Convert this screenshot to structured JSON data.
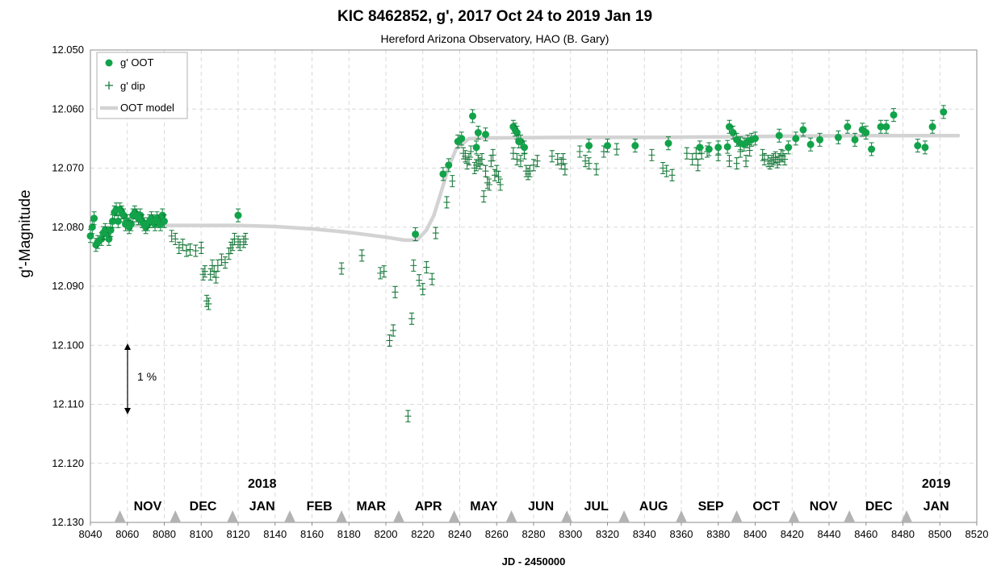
{
  "chart_data": {
    "type": "scatter",
    "title": "KIC 8462852, g', 2017 Oct 24 to 2019 Jan 19",
    "subtitle": "Hereford Arizona Observatory, HAO (B. Gary)",
    "xlabel": "JD - 2450000",
    "ylabel": "g'-Magnitude",
    "xlim": [
      8040,
      8520
    ],
    "ylim": [
      12.05,
      12.13
    ],
    "y_inverted": true,
    "x_ticks": [
      8040,
      8060,
      8080,
      8100,
      8120,
      8140,
      8160,
      8180,
      8200,
      8220,
      8240,
      8260,
      8280,
      8300,
      8320,
      8340,
      8360,
      8380,
      8400,
      8420,
      8440,
      8460,
      8480,
      8500,
      8520
    ],
    "y_ticks": [
      "12.050",
      "12.060",
      "12.070",
      "12.080",
      "12.090",
      "12.100",
      "12.110",
      "12.120",
      "12.130"
    ],
    "grid": true,
    "legend_position": "top-left",
    "legend": [
      {
        "label": "g' OOT",
        "marker": "circle"
      },
      {
        "label": "g' dip",
        "marker": "plus"
      },
      {
        "label": "OOT model",
        "marker": "line"
      }
    ],
    "colors": {
      "oot": "#12a34a",
      "dip": "#1a7a3c",
      "model": "#d3d3d3"
    },
    "series": [
      {
        "name": "g' OOT",
        "marker": "circle",
        "points": [
          [
            8040,
            12.0815
          ],
          [
            8041,
            12.08
          ],
          [
            8042,
            12.0785
          ],
          [
            8043,
            12.083
          ],
          [
            8044,
            12.0825
          ],
          [
            8046,
            12.082
          ],
          [
            8047,
            12.081
          ],
          [
            8048,
            12.0805
          ],
          [
            8049,
            12.081
          ],
          [
            8050,
            12.082
          ],
          [
            8051,
            12.0805
          ],
          [
            8052,
            12.079
          ],
          [
            8053,
            12.0775
          ],
          [
            8054,
            12.077
          ],
          [
            8055,
            12.079
          ],
          [
            8056,
            12.077
          ],
          [
            8057,
            12.0775
          ],
          [
            8058,
            12.078
          ],
          [
            8059,
            12.0795
          ],
          [
            8060,
            12.079
          ],
          [
            8061,
            12.08
          ],
          [
            8062,
            12.0795
          ],
          [
            8063,
            12.078
          ],
          [
            8064,
            12.0775
          ],
          [
            8065,
            12.078
          ],
          [
            8066,
            12.0785
          ],
          [
            8067,
            12.078
          ],
          [
            8068,
            12.079
          ],
          [
            8069,
            12.0795
          ],
          [
            8070,
            12.08
          ],
          [
            8071,
            12.0795
          ],
          [
            8072,
            12.079
          ],
          [
            8073,
            12.0785
          ],
          [
            8074,
            12.079
          ],
          [
            8075,
            12.0795
          ],
          [
            8076,
            12.0785
          ],
          [
            8077,
            12.079
          ],
          [
            8078,
            12.0795
          ],
          [
            8079,
            12.078
          ],
          [
            8080,
            12.079
          ],
          [
            8120,
            12.078
          ],
          [
            8216,
            12.0812
          ],
          [
            8231,
            12.071
          ],
          [
            8234,
            12.0695
          ],
          [
            8239,
            12.0655
          ],
          [
            8241,
            12.065
          ],
          [
            8247,
            12.0612
          ],
          [
            8249,
            12.0665
          ],
          [
            8250,
            12.064
          ],
          [
            8254,
            12.0643
          ],
          [
            8269,
            12.063
          ],
          [
            8270,
            12.0635
          ],
          [
            8271,
            12.064
          ],
          [
            8272,
            12.0655
          ],
          [
            8273,
            12.0655
          ],
          [
            8275,
            12.0665
          ],
          [
            8310,
            12.0662
          ],
          [
            8320,
            12.0662
          ],
          [
            8335,
            12.0662
          ],
          [
            8353,
            12.0658
          ],
          [
            8370,
            12.0665
          ],
          [
            8375,
            12.0668
          ],
          [
            8380,
            12.0665
          ],
          [
            8385,
            12.0664
          ],
          [
            8386,
            12.063
          ],
          [
            8388,
            12.064
          ],
          [
            8390,
            12.0652
          ],
          [
            8392,
            12.0658
          ],
          [
            8394,
            12.066
          ],
          [
            8396,
            12.0655
          ],
          [
            8398,
            12.0652
          ],
          [
            8400,
            12.065
          ],
          [
            8413,
            12.0645
          ],
          [
            8418,
            12.0665
          ],
          [
            8422,
            12.065
          ],
          [
            8426,
            12.0635
          ],
          [
            8430,
            12.066
          ],
          [
            8435,
            12.0652
          ],
          [
            8445,
            12.0648
          ],
          [
            8450,
            12.063
          ],
          [
            8454,
            12.0652
          ],
          [
            8458,
            12.0635
          ],
          [
            8460,
            12.064
          ],
          [
            8463,
            12.0668
          ],
          [
            8468,
            12.063
          ],
          [
            8471,
            12.063
          ],
          [
            8475,
            12.061
          ],
          [
            8488,
            12.0662
          ],
          [
            8492,
            12.0665
          ],
          [
            8496,
            12.063
          ],
          [
            8502,
            12.0605
          ]
        ]
      },
      {
        "name": "g' dip",
        "marker": "plus",
        "points": [
          [
            8084,
            12.0815
          ],
          [
            8086,
            12.082
          ],
          [
            8088,
            12.0835
          ],
          [
            8090,
            12.083
          ],
          [
            8092,
            12.084
          ],
          [
            8094,
            12.0838
          ],
          [
            8097,
            12.084
          ],
          [
            8100,
            12.0835
          ],
          [
            8101,
            12.088
          ],
          [
            8102,
            12.0875
          ],
          [
            8103,
            12.0925
          ],
          [
            8104,
            12.093
          ],
          [
            8105,
            12.088
          ],
          [
            8106,
            12.0865
          ],
          [
            8107,
            12.0875
          ],
          [
            8108,
            12.0885
          ],
          [
            8109,
            12.0865
          ],
          [
            8111,
            12.0855
          ],
          [
            8113,
            12.086
          ],
          [
            8115,
            12.0845
          ],
          [
            8116,
            12.0835
          ],
          [
            8117,
            12.083
          ],
          [
            8118,
            12.082
          ],
          [
            8120,
            12.0825
          ],
          [
            8121,
            12.083
          ],
          [
            8123,
            12.0825
          ],
          [
            8124,
            12.082
          ],
          [
            8176,
            12.087
          ],
          [
            8187,
            12.0848
          ],
          [
            8197,
            12.0878
          ],
          [
            8199,
            12.0875
          ],
          [
            8202,
            12.0992
          ],
          [
            8204,
            12.0975
          ],
          [
            8205,
            12.091
          ],
          [
            8212,
            12.112
          ],
          [
            8214,
            12.0955
          ],
          [
            8215,
            12.0865
          ],
          [
            8218,
            12.089
          ],
          [
            8220,
            12.0905
          ],
          [
            8222,
            12.0868
          ],
          [
            8225,
            12.0888
          ],
          [
            8227,
            12.081
          ],
          [
            8233,
            12.0758
          ],
          [
            8236,
            12.0722
          ],
          [
            8242,
            12.0675
          ],
          [
            8243,
            12.068
          ],
          [
            8244,
            12.0692
          ],
          [
            8245,
            12.0685
          ],
          [
            8246,
            12.0672
          ],
          [
            8248,
            12.07
          ],
          [
            8249,
            12.0695
          ],
          [
            8250,
            12.0688
          ],
          [
            8251,
            12.0692
          ],
          [
            8252,
            12.0685
          ],
          [
            8253,
            12.0748
          ],
          [
            8254,
            12.0705
          ],
          [
            8255,
            12.0725
          ],
          [
            8256,
            12.0728
          ],
          [
            8257,
            12.0688
          ],
          [
            8258,
            12.0678
          ],
          [
            8259,
            12.0712
          ],
          [
            8260,
            12.0705
          ],
          [
            8261,
            12.0715
          ],
          [
            8262,
            12.0728
          ],
          [
            8269,
            12.0675
          ],
          [
            8271,
            12.0685
          ],
          [
            8273,
            12.0688
          ],
          [
            8275,
            12.0675
          ],
          [
            8276,
            12.0705
          ],
          [
            8277,
            12.071
          ],
          [
            8278,
            12.0705
          ],
          [
            8280,
            12.0695
          ],
          [
            8282,
            12.0688
          ],
          [
            8290,
            12.068
          ],
          [
            8293,
            12.0685
          ],
          [
            8295,
            12.0692
          ],
          [
            8296,
            12.0685
          ],
          [
            8297,
            12.0702
          ],
          [
            8305,
            12.0672
          ],
          [
            8308,
            12.0688
          ],
          [
            8310,
            12.0692
          ],
          [
            8314,
            12.0702
          ],
          [
            8318,
            12.0672
          ],
          [
            8325,
            12.0668
          ],
          [
            8344,
            12.0678
          ],
          [
            8350,
            12.07
          ],
          [
            8352,
            12.0705
          ],
          [
            8355,
            12.0712
          ],
          [
            8363,
            12.0675
          ],
          [
            8366,
            12.0685
          ],
          [
            8368,
            12.0675
          ],
          [
            8369,
            12.0695
          ],
          [
            8371,
            12.0675
          ],
          [
            8374,
            12.0672
          ],
          [
            8380,
            12.0678
          ],
          [
            8386,
            12.0688
          ],
          [
            8390,
            12.0692
          ],
          [
            8392,
            12.0672
          ],
          [
            8395,
            12.0688
          ],
          [
            8397,
            12.067
          ],
          [
            8404,
            12.0678
          ],
          [
            8405,
            12.0685
          ],
          [
            8407,
            12.0688
          ],
          [
            8408,
            12.0692
          ],
          [
            8409,
            12.0688
          ],
          [
            8410,
            12.0685
          ],
          [
            8411,
            12.0682
          ],
          [
            8412,
            12.069
          ],
          [
            8413,
            12.0685
          ],
          [
            8414,
            12.0678
          ],
          [
            8415,
            12.068
          ],
          [
            8416,
            12.0685
          ]
        ]
      },
      {
        "name": "OOT model",
        "marker": "line",
        "points": [
          [
            8060,
            12.0797
          ],
          [
            8100,
            12.0797
          ],
          [
            8120,
            12.0797
          ],
          [
            8140,
            12.0799
          ],
          [
            8160,
            12.0803
          ],
          [
            8180,
            12.0809
          ],
          [
            8200,
            12.0817
          ],
          [
            8210,
            12.0822
          ],
          [
            8217,
            12.0822
          ],
          [
            8222,
            12.0805
          ],
          [
            8226,
            12.078
          ],
          [
            8230,
            12.074
          ],
          [
            8234,
            12.0698
          ],
          [
            8238,
            12.0668
          ],
          [
            8245,
            12.065
          ],
          [
            8255,
            12.0649
          ],
          [
            8300,
            12.0648
          ],
          [
            8350,
            12.0648
          ],
          [
            8380,
            12.0647
          ],
          [
            8420,
            12.0646
          ],
          [
            8460,
            12.0645
          ],
          [
            8510,
            12.0645
          ]
        ]
      }
    ],
    "scale_annotation": "1 %",
    "month_labels": [
      {
        "label": "NOV",
        "x": 8071,
        "row": 1
      },
      {
        "label": "DEC",
        "x": 8101,
        "row": 1
      },
      {
        "label": "2018",
        "x": 8133,
        "row": 0
      },
      {
        "label": "JAN",
        "x": 8133,
        "row": 1
      },
      {
        "label": "FEB",
        "x": 8164,
        "row": 1
      },
      {
        "label": "MAR",
        "x": 8192,
        "row": 1
      },
      {
        "label": "APR",
        "x": 8223,
        "row": 1
      },
      {
        "label": "MAY",
        "x": 8253,
        "row": 1
      },
      {
        "label": "JUN",
        "x": 8284,
        "row": 1
      },
      {
        "label": "JUL",
        "x": 8314,
        "row": 1
      },
      {
        "label": "AUG",
        "x": 8345,
        "row": 1
      },
      {
        "label": "SEP",
        "x": 8376,
        "row": 1
      },
      {
        "label": "OCT",
        "x": 8406,
        "row": 1
      },
      {
        "label": "NOV",
        "x": 8437,
        "row": 1
      },
      {
        "label": "DEC",
        "x": 8467,
        "row": 1
      },
      {
        "label": "2019",
        "x": 8498,
        "row": 0
      },
      {
        "label": "JAN",
        "x": 8498,
        "row": 1
      }
    ],
    "month_markers_x": [
      8056,
      8086,
      8117,
      8148,
      8176,
      8207,
      8237,
      8268,
      8298,
      8329,
      8360,
      8390,
      8421,
      8451,
      8482
    ]
  }
}
